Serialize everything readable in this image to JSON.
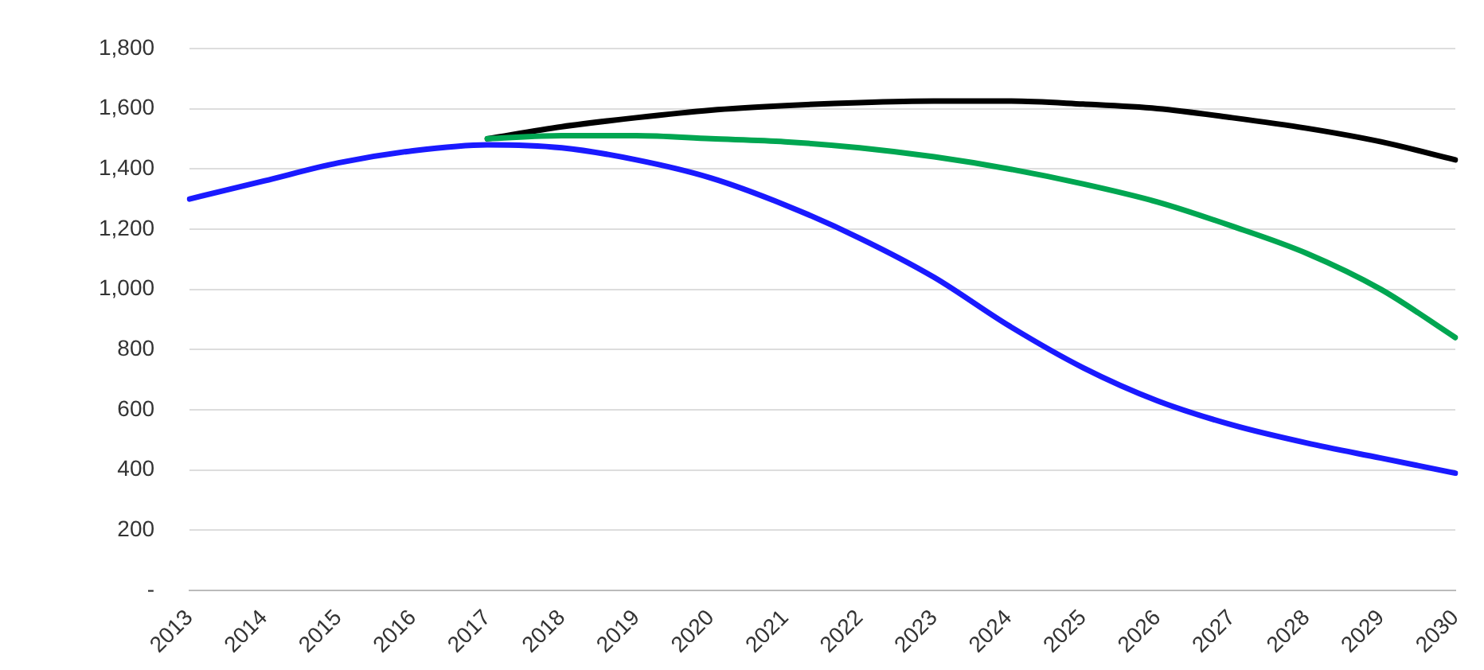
{
  "chart_data": {
    "type": "line",
    "categories": [
      "2013",
      "2014",
      "2015",
      "2016",
      "2017",
      "2018",
      "2019",
      "2020",
      "2021",
      "2022",
      "2023",
      "2024",
      "2025",
      "2026",
      "2027",
      "2028",
      "2029",
      "2030"
    ],
    "series": [
      {
        "color": "#000000",
        "values": [
          null,
          null,
          null,
          null,
          1500,
          1540,
          1570,
          1595,
          1610,
          1620,
          1625,
          1625,
          1615,
          1600,
          1570,
          1535,
          1490,
          1430
        ]
      },
      {
        "color": "#00a651",
        "values": [
          null,
          null,
          null,
          null,
          1500,
          1510,
          1510,
          1500,
          1490,
          1470,
          1440,
          1400,
          1350,
          1290,
          1210,
          1120,
          1000,
          840
        ]
      },
      {
        "color": "#1a1aff",
        "values": [
          1300,
          1360,
          1420,
          1460,
          1480,
          1470,
          1430,
          1370,
          1280,
          1170,
          1040,
          880,
          740,
          630,
          550,
          490,
          440,
          390
        ]
      }
    ],
    "ylim": [
      0,
      1800
    ],
    "yticks": [
      {
        "value": 0,
        "label": "-"
      },
      {
        "value": 200,
        "label": "200"
      },
      {
        "value": 400,
        "label": "400"
      },
      {
        "value": 600,
        "label": "600"
      },
      {
        "value": 800,
        "label": "800"
      },
      {
        "value": 1000,
        "label": "1,000"
      },
      {
        "value": 1200,
        "label": "1,200"
      },
      {
        "value": 1400,
        "label": "1,400"
      },
      {
        "value": 1600,
        "label": "1,600"
      },
      {
        "value": 1800,
        "label": "1,800"
      }
    ],
    "grid": "y",
    "legend": false,
    "marker": "none",
    "line_style": "solid"
  }
}
